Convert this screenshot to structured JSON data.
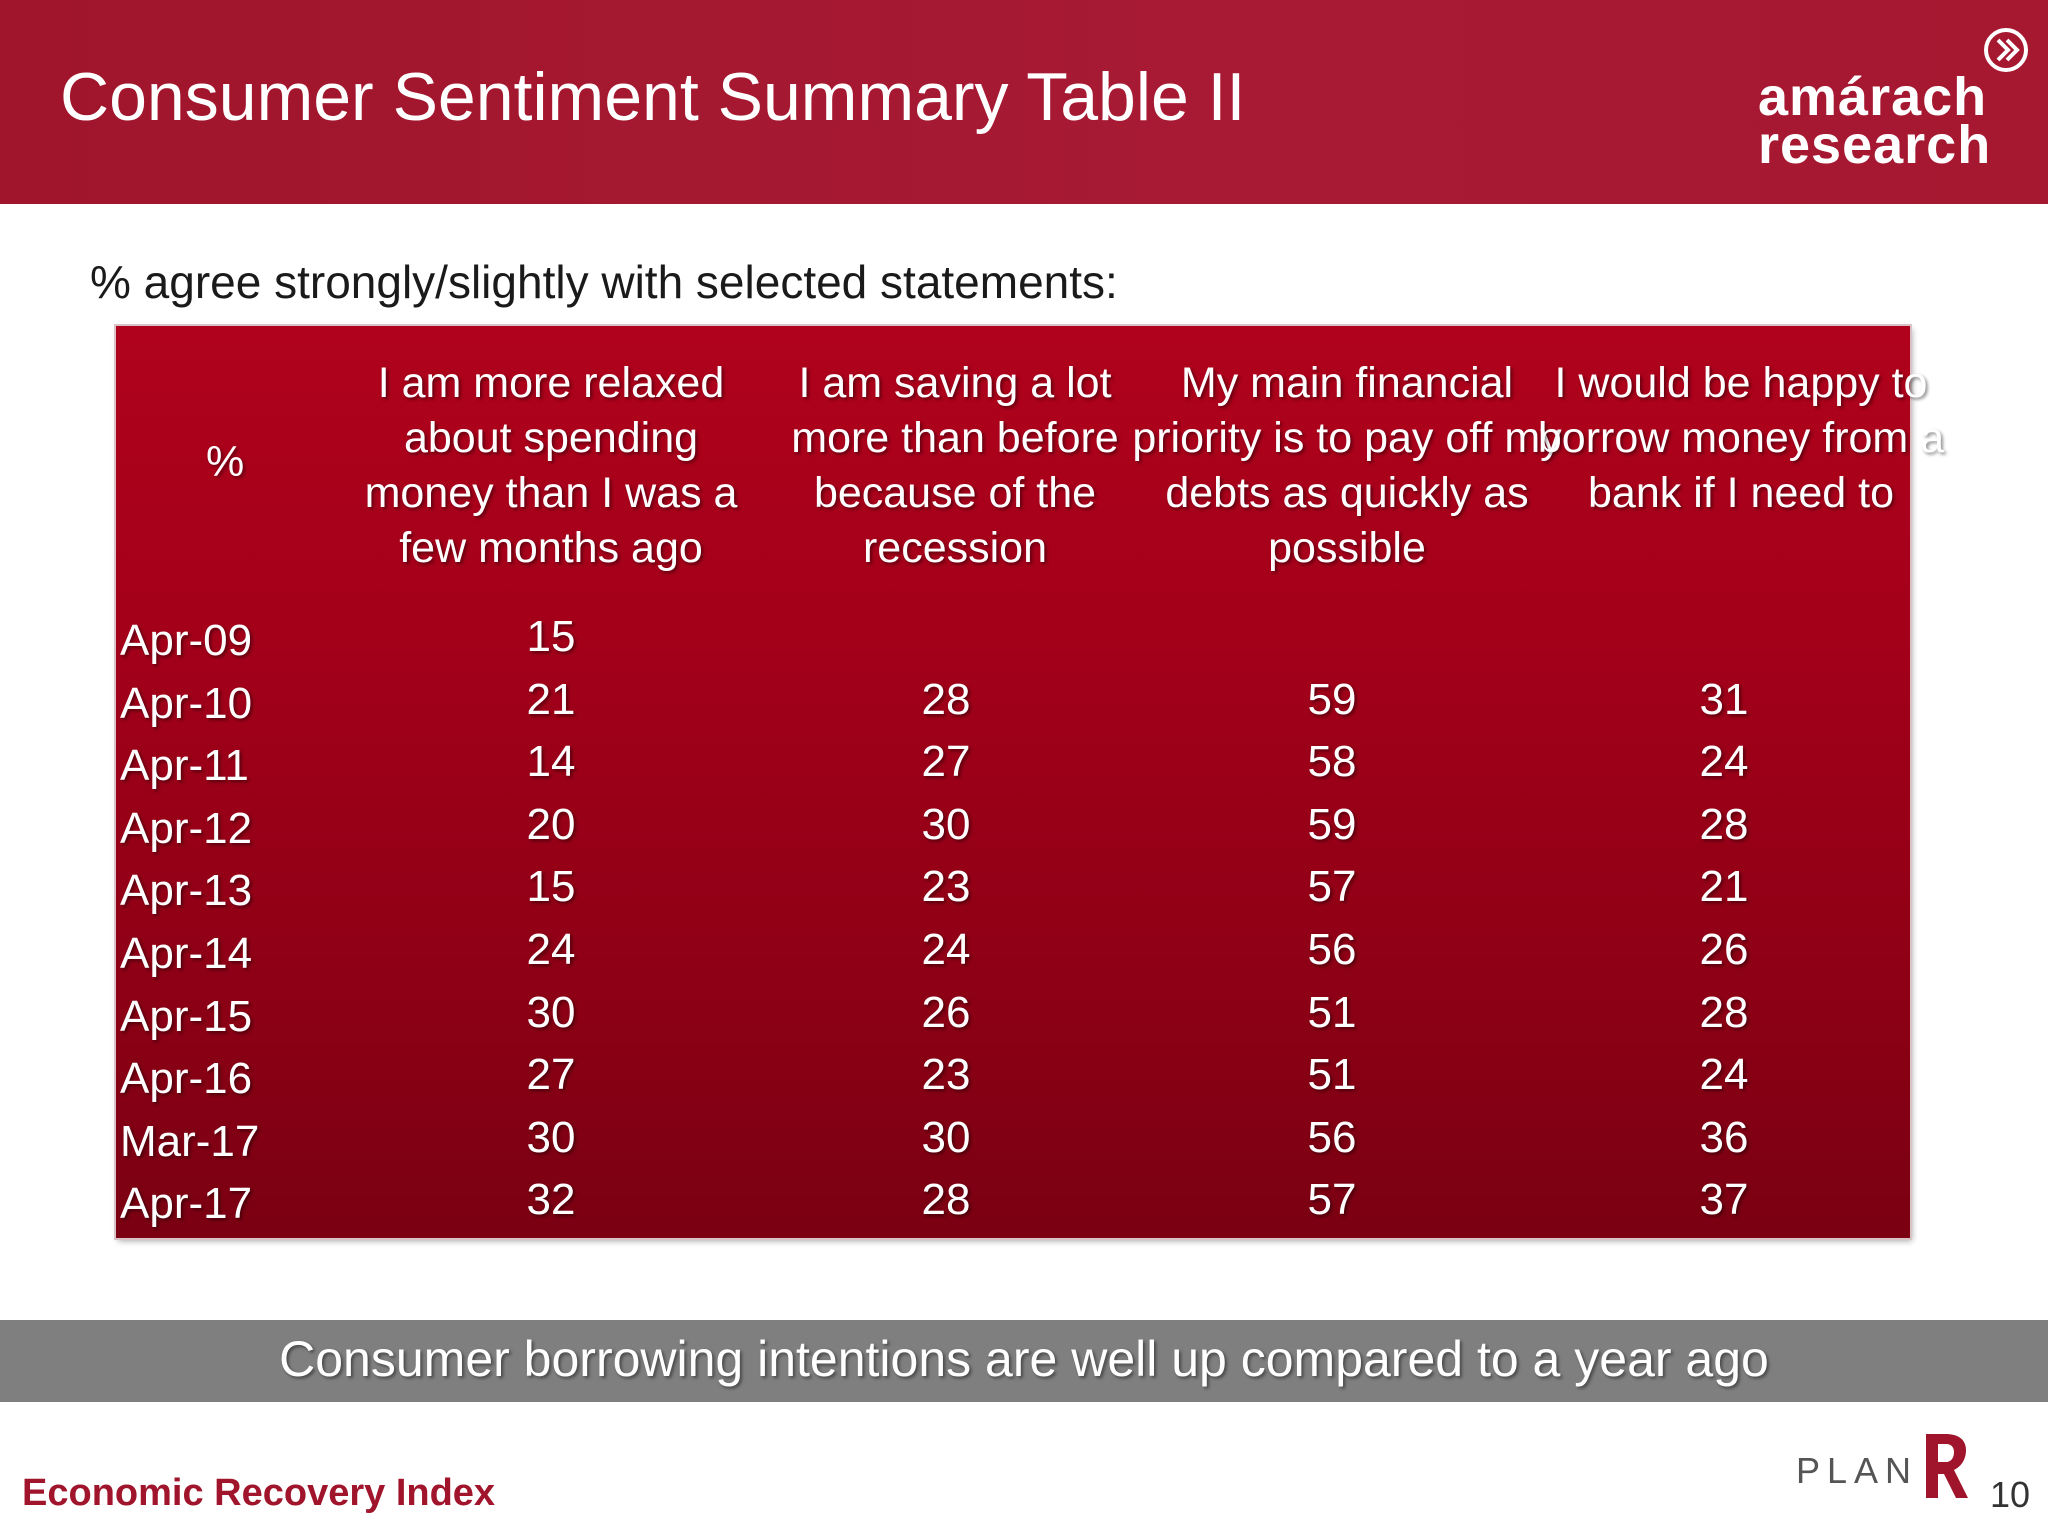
{
  "header": {
    "title": "Consumer Sentiment Summary Table II",
    "logo_line1": "amárach",
    "logo_line2": "research",
    "band_color": "#a0152b"
  },
  "subtitle": "% agree strongly/slightly with selected statements:",
  "table": {
    "corner_label": "%",
    "columns": [
      "I am more relaxed about spending money than I was a few months ago",
      "I am saving a lot more than before because of the recession",
      "My main financial priority is to pay off my debts as quickly as possible",
      "I would be happy to borrow money from a bank if I need to"
    ],
    "rows": [
      {
        "label": "Apr-09",
        "values": [
          "15",
          "",
          "",
          ""
        ]
      },
      {
        "label": "Apr-10",
        "values": [
          "21",
          "28",
          "59",
          "31"
        ]
      },
      {
        "label": "Apr-11",
        "values": [
          "14",
          "27",
          "58",
          "24"
        ]
      },
      {
        "label": "Apr-12",
        "values": [
          "20",
          "30",
          "59",
          "28"
        ]
      },
      {
        "label": "Apr-13",
        "values": [
          "15",
          "23",
          "57",
          "21"
        ]
      },
      {
        "label": "Apr-14",
        "values": [
          "24",
          "24",
          "56",
          "26"
        ]
      },
      {
        "label": "Apr-15",
        "values": [
          "30",
          "26",
          "51",
          "28"
        ]
      },
      {
        "label": "Apr-16",
        "values": [
          "27",
          "23",
          "51",
          "24"
        ]
      },
      {
        "label": "Mar-17",
        "values": [
          "30",
          "30",
          "56",
          "36"
        ]
      },
      {
        "label": "Apr-17",
        "values": [
          "32",
          "28",
          "57",
          "37"
        ]
      }
    ],
    "fill_color": "#a3001a"
  },
  "banner": {
    "text": "Consumer borrowing intentions are well up compared to a year ago",
    "color": "#7f7f7f"
  },
  "footer": {
    "title": "Economic Recovery Index",
    "plan_word": "PLAN",
    "page_number": "10"
  }
}
